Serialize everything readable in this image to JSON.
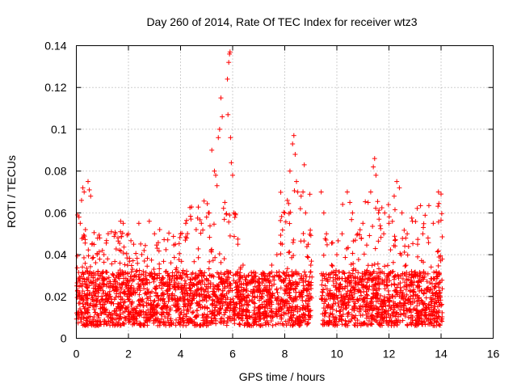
{
  "chart_data": {
    "type": "scatter",
    "title": "Day 260 of 2014, Rate Of TEC Index for receiver wtz3",
    "xlabel": "GPS time / hours",
    "ylabel": "ROTI / TECUs",
    "xlim": [
      0,
      16
    ],
    "ylim": [
      0,
      0.14
    ],
    "xticks": [
      0,
      2,
      4,
      6,
      8,
      10,
      12,
      14,
      16
    ],
    "xtick_labels": [
      "0",
      "2",
      "4",
      "6",
      "8",
      "10",
      "12",
      "14",
      "16"
    ],
    "yticks": [
      0,
      0.02,
      0.04,
      0.06,
      0.08,
      0.1,
      0.12,
      0.14
    ],
    "ytick_labels": [
      "0",
      "0.02",
      "0.04",
      "0.06",
      "0.08",
      "0.1",
      "0.12",
      "0.14"
    ],
    "grid": true,
    "marker": "+",
    "marker_color": "#ff0000",
    "data_gap_hours": [
      9.05,
      9.4
    ],
    "series": [
      {
        "name": "ROTI",
        "points": [
          [
            0.05,
            0.059
          ],
          [
            0.1,
            0.058
          ],
          [
            0.15,
            0.055
          ],
          [
            0.2,
            0.066
          ],
          [
            0.25,
            0.072
          ],
          [
            0.3,
            0.07
          ],
          [
            0.45,
            0.075
          ],
          [
            0.5,
            0.071
          ],
          [
            0.55,
            0.068
          ],
          [
            0.35,
            0.052
          ],
          [
            0.6,
            0.045
          ],
          [
            0.8,
            0.04
          ],
          [
            0.9,
            0.048
          ],
          [
            1.0,
            0.042
          ],
          [
            1.2,
            0.038
          ],
          [
            1.5,
            0.05
          ],
          [
            1.7,
            0.056
          ],
          [
            1.8,
            0.055
          ],
          [
            2.0,
            0.05
          ],
          [
            2.2,
            0.045
          ],
          [
            2.4,
            0.055
          ],
          [
            2.6,
            0.042
          ],
          [
            2.8,
            0.056
          ],
          [
            3.0,
            0.05
          ],
          [
            3.2,
            0.052
          ],
          [
            3.5,
            0.03
          ],
          [
            3.8,
            0.045
          ],
          [
            4.0,
            0.05
          ],
          [
            4.2,
            0.055
          ],
          [
            4.4,
            0.057
          ],
          [
            4.6,
            0.052
          ],
          [
            4.8,
            0.055
          ],
          [
            5.0,
            0.058
          ],
          [
            5.1,
            0.06
          ],
          [
            5.2,
            0.09
          ],
          [
            5.3,
            0.08
          ],
          [
            5.35,
            0.078
          ],
          [
            5.4,
            0.073
          ],
          [
            5.45,
            0.096
          ],
          [
            5.5,
            0.1
          ],
          [
            5.55,
            0.115
          ],
          [
            5.6,
            0.106
          ],
          [
            5.7,
            0.065
          ],
          [
            5.8,
            0.124
          ],
          [
            5.82,
            0.107
          ],
          [
            5.85,
            0.132
          ],
          [
            5.88,
            0.136
          ],
          [
            5.9,
            0.137
          ],
          [
            5.92,
            0.096
          ],
          [
            5.95,
            0.084
          ],
          [
            6.0,
            0.078
          ],
          [
            6.05,
            0.06
          ],
          [
            6.2,
            0.045
          ],
          [
            6.4,
            0.035
          ],
          [
            6.6,
            0.03
          ],
          [
            6.8,
            0.028
          ],
          [
            7.0,
            0.025
          ],
          [
            7.2,
            0.03
          ],
          [
            7.5,
            0.035
          ],
          [
            7.7,
            0.04
          ],
          [
            7.9,
            0.045
          ],
          [
            8.0,
            0.06
          ],
          [
            8.1,
            0.066
          ],
          [
            8.2,
            0.08
          ],
          [
            8.3,
            0.093
          ],
          [
            8.35,
            0.097
          ],
          [
            8.4,
            0.088
          ],
          [
            8.45,
            0.075
          ],
          [
            8.5,
            0.07
          ],
          [
            8.6,
            0.062
          ],
          [
            8.7,
            0.07
          ],
          [
            8.75,
            0.083
          ],
          [
            8.8,
            0.06
          ],
          [
            8.9,
            0.045
          ],
          [
            9.0,
            0.035
          ],
          [
            9.4,
            0.07
          ],
          [
            9.5,
            0.06
          ],
          [
            9.6,
            0.05
          ],
          [
            9.8,
            0.035
          ],
          [
            10.0,
            0.04
          ],
          [
            10.2,
            0.05
          ],
          [
            10.4,
            0.07
          ],
          [
            10.5,
            0.065
          ],
          [
            10.6,
            0.06
          ],
          [
            10.8,
            0.05
          ],
          [
            11.0,
            0.055
          ],
          [
            11.2,
            0.065
          ],
          [
            11.3,
            0.07
          ],
          [
            11.4,
            0.082
          ],
          [
            11.45,
            0.086
          ],
          [
            11.5,
            0.078
          ],
          [
            11.6,
            0.06
          ],
          [
            11.8,
            0.05
          ],
          [
            12.0,
            0.055
          ],
          [
            12.2,
            0.068
          ],
          [
            12.3,
            0.075
          ],
          [
            12.4,
            0.072
          ],
          [
            12.5,
            0.06
          ],
          [
            12.7,
            0.05
          ],
          [
            12.9,
            0.056
          ],
          [
            13.1,
            0.045
          ],
          [
            13.3,
            0.05
          ],
          [
            13.5,
            0.048
          ],
          [
            13.7,
            0.055
          ],
          [
            13.9,
            0.07
          ],
          [
            14.0,
            0.069
          ]
        ]
      }
    ]
  }
}
